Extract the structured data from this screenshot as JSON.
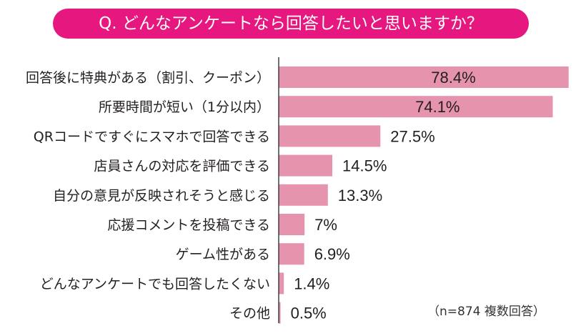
{
  "colors": {
    "accent": "#e6177f",
    "bar": "#e693ae",
    "axis": "#333333",
    "text": "#231f20"
  },
  "chart_data": {
    "type": "bar",
    "orientation": "horizontal",
    "title": "Q. どんなアンケートなら回答したいと思いますか？",
    "categories": [
      "回答後に特典がある（割引、クーポン）",
      "所要時間が短い（1分以内）",
      "QRコードですぐにスマホで回答できる",
      "店員さんの対応を評価できる",
      "自分の意見が反映されそうと感じる",
      "応援コメントを投稿できる",
      "ゲーム性がある",
      "どんなアンケートでも回答したくない",
      "その他"
    ],
    "values": [
      78.4,
      74.1,
      27.5,
      14.5,
      13.3,
      7,
      6.9,
      1.4,
      0.5
    ],
    "labels": [
      "78.4%",
      "74.1%",
      "27.5%",
      "14.5%",
      "13.3%",
      "7%",
      "6.9%",
      "1.4%",
      "0.5%"
    ],
    "unit": "%",
    "xlim": [
      0,
      80
    ],
    "grid": false,
    "note": "（n=874 複数回答）"
  }
}
